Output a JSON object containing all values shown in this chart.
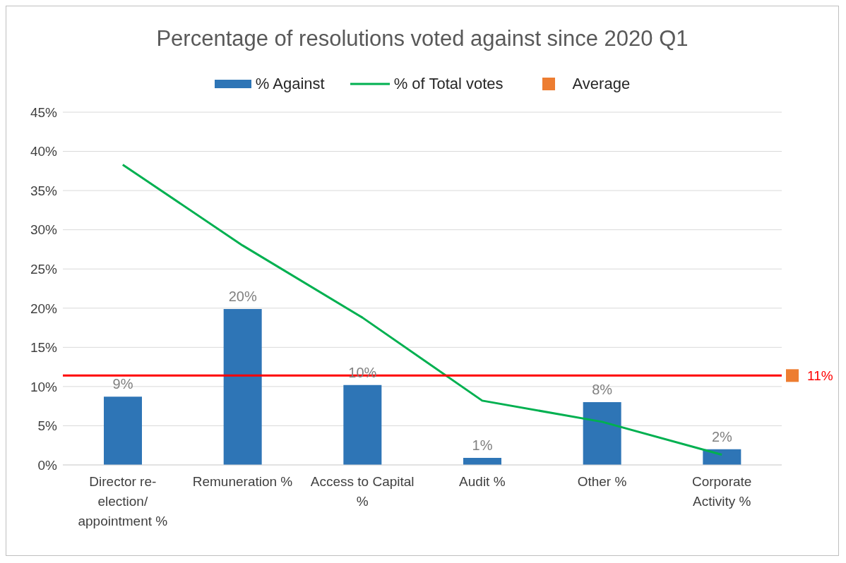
{
  "chart_data": {
    "type": "bar",
    "title": "Percentage of resolutions voted against since 2020 Q1",
    "categories": [
      "Director re-election/ appointment %",
      "Remuneration %",
      "Access to Capital %",
      "Audit %",
      "Other %",
      "Corporate Activity %"
    ],
    "series": [
      {
        "name": "% Against",
        "type": "bar",
        "color": "#2e75b6",
        "values": [
          8.7,
          19.9,
          10.2,
          0.9,
          8.0,
          2.0
        ],
        "value_labels": [
          "9%",
          "20%",
          "10%",
          "1%",
          "8%",
          "2%"
        ]
      },
      {
        "name": "% of Total votes",
        "type": "line",
        "color": "#00b050",
        "values": [
          38.3,
          28.0,
          18.8,
          8.2,
          5.5,
          1.3
        ],
        "marker": "none"
      },
      {
        "name": "Average",
        "type": "scatter",
        "color": "#ed7d31",
        "marker": "square",
        "values": [
          null,
          null,
          null,
          null,
          null,
          null
        ]
      }
    ],
    "ref_lines": [
      {
        "axis": "y",
        "value": 11.4,
        "label": "11%",
        "color": "#ff0000"
      }
    ],
    "ylim": [
      0,
      45
    ],
    "yticks": [
      {
        "value": 0,
        "label": "0%"
      },
      {
        "value": 5,
        "label": "5%"
      },
      {
        "value": 10,
        "label": "10%"
      },
      {
        "value": 15,
        "label": "15%"
      },
      {
        "value": 20,
        "label": "20%"
      },
      {
        "value": 25,
        "label": "25%"
      },
      {
        "value": 30,
        "label": "30%"
      },
      {
        "value": 35,
        "label": "35%"
      },
      {
        "value": 40,
        "label": "40%"
      },
      {
        "value": 45,
        "label": "45%"
      }
    ],
    "grid": "y",
    "legend": "top"
  }
}
